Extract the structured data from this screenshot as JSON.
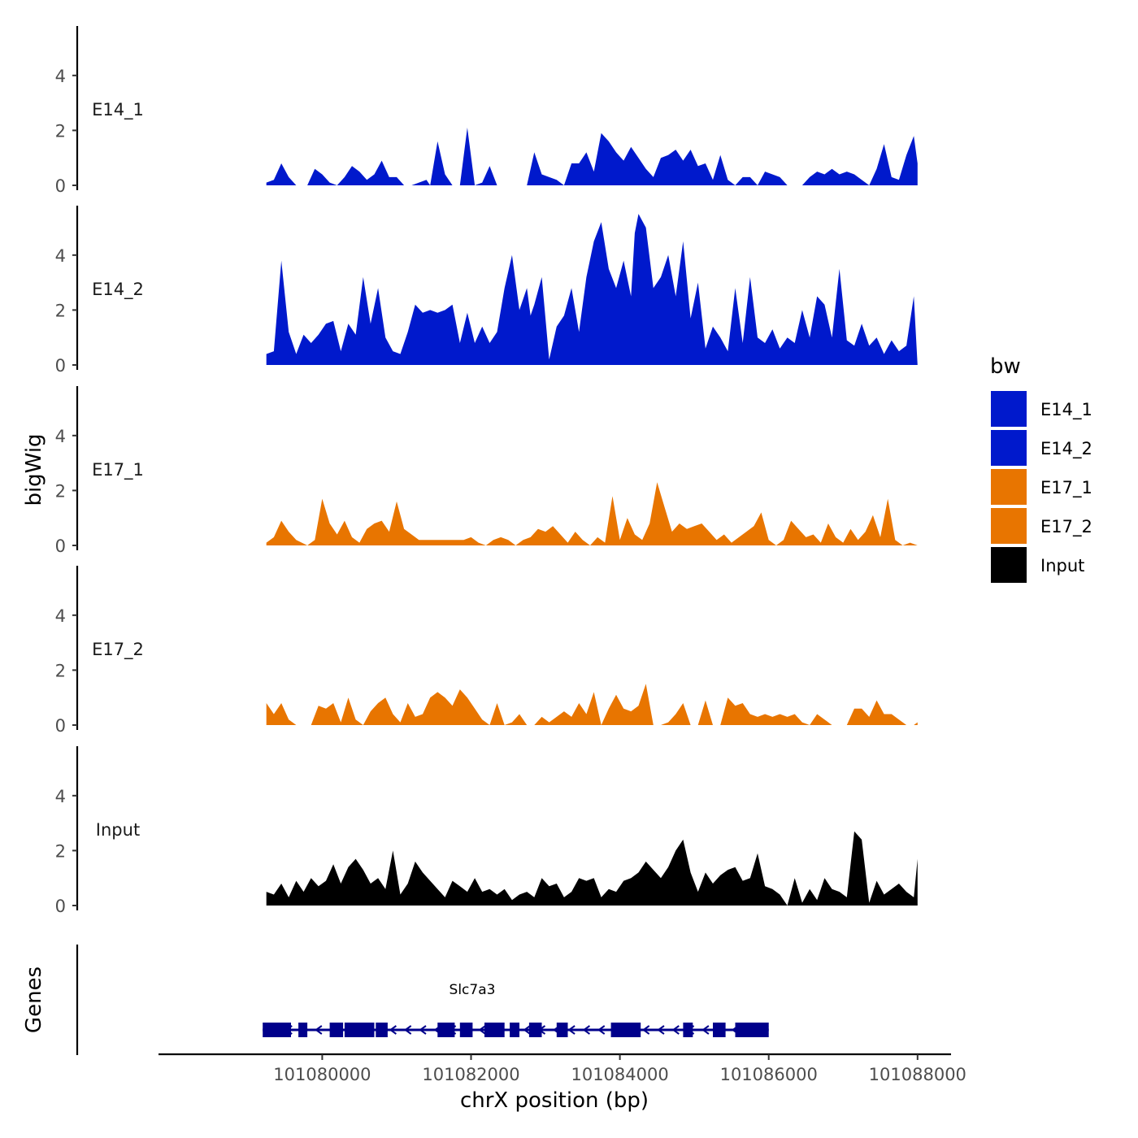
{
  "chart_data": {
    "type": "area",
    "ylabel": "bigWig",
    "xlabel": "chrX position (bp)",
    "ylim": [
      0,
      5.8
    ],
    "yticks": [
      0,
      2,
      4
    ],
    "xlim": [
      101077800,
      101088450
    ],
    "xticks": [
      101080000,
      101082000,
      101084000,
      101086000,
      101088000
    ],
    "xtick_labels": [
      "101080000",
      "101082000",
      "101084000",
      "101086000",
      "101088000"
    ],
    "legend": {
      "title": "bw",
      "position": "right",
      "entries": [
        {
          "label": "E14_1",
          "color": "#0019CC"
        },
        {
          "label": "E14_2",
          "color": "#0019CC"
        },
        {
          "label": "E17_1",
          "color": "#E87500"
        },
        {
          "label": "E17_2",
          "color": "#E87500"
        },
        {
          "label": "Input",
          "color": "#000000"
        }
      ]
    },
    "series": [
      {
        "name": "E14_1",
        "color": "#0019CC",
        "x": [
          101079250,
          101079350,
          101079450,
          101079550,
          101079650,
          101079800,
          101079900,
          101080000,
          101080100,
          101080200,
          101080300,
          101080400,
          101080500,
          101080600,
          101080700,
          101080800,
          101080900,
          101081000,
          101081100,
          101081200,
          101081300,
          101081400,
          101081450,
          101081550,
          101081650,
          101081750,
          101081850,
          101081950,
          101082050,
          101082150,
          101082250,
          101082350,
          101082450,
          101082550,
          101082650,
          101082750,
          101082850,
          101082950,
          101083050,
          101083150,
          101083250,
          101083350,
          101083450,
          101083550,
          101083650,
          101083750,
          101083850,
          101083950,
          101084050,
          101084150,
          101084250,
          101084350,
          101084450,
          101084550,
          101084650,
          101084750,
          101084850,
          101084950,
          101085050,
          101085150,
          101085250,
          101085350,
          101085450,
          101085550,
          101085650,
          101085750,
          101085850,
          101085950,
          101086050,
          101086150,
          101086250,
          101086350,
          101086450,
          101086550,
          101086650,
          101086750,
          101086850,
          101086950,
          101087050,
          101087150,
          101087250,
          101087350,
          101087450,
          101087550,
          101087650,
          101087750,
          101087850,
          101087950,
          101088000
        ],
        "values": [
          0.1,
          0.2,
          0.8,
          0.3,
          0.0,
          0.0,
          0.6,
          0.4,
          0.1,
          0.0,
          0.3,
          0.7,
          0.5,
          0.2,
          0.4,
          0.9,
          0.3,
          0.3,
          0.0,
          0.0,
          0.1,
          0.2,
          0.0,
          1.6,
          0.4,
          0.0,
          0.0,
          2.1,
          0.0,
          0.1,
          0.7,
          0.0,
          0.0,
          0.0,
          0.0,
          0.0,
          1.2,
          0.4,
          0.3,
          0.2,
          0.0,
          0.8,
          0.8,
          1.2,
          0.5,
          1.9,
          1.6,
          1.2,
          0.9,
          1.4,
          1.0,
          0.6,
          0.3,
          1.0,
          1.1,
          1.3,
          0.9,
          1.3,
          0.7,
          0.8,
          0.2,
          1.1,
          0.2,
          0.0,
          0.3,
          0.3,
          0.0,
          0.5,
          0.4,
          0.3,
          0.0,
          0.0,
          0.0,
          0.3,
          0.5,
          0.4,
          0.6,
          0.4,
          0.5,
          0.4,
          0.2,
          0.0,
          0.6,
          1.5,
          0.3,
          0.2,
          1.1,
          1.8,
          0.8
        ]
      },
      {
        "name": "E14_2",
        "color": "#0019CC",
        "x": [
          101079250,
          101079350,
          101079450,
          101079550,
          101079650,
          101079750,
          101079850,
          101079950,
          101080050,
          101080150,
          101080250,
          101080350,
          101080450,
          101080550,
          101080650,
          101080750,
          101080850,
          101080950,
          101081050,
          101081150,
          101081250,
          101081350,
          101081450,
          101081550,
          101081650,
          101081750,
          101081850,
          101081950,
          101082050,
          101082150,
          101082250,
          101082350,
          101082450,
          101082550,
          101082650,
          101082750,
          101082800,
          101082850,
          101082950,
          101083050,
          101083150,
          101083250,
          101083350,
          101083450,
          101083550,
          101083650,
          101083750,
          101083850,
          101083950,
          101084050,
          101084150,
          101084200,
          101084250,
          101084350,
          101084450,
          101084550,
          101084650,
          101084750,
          101084850,
          101084950,
          101085050,
          101085150,
          101085250,
          101085350,
          101085450,
          101085550,
          101085650,
          101085750,
          101085850,
          101085950,
          101086050,
          101086150,
          101086250,
          101086350,
          101086450,
          101086550,
          101086650,
          101086750,
          101086850,
          101086950,
          101087050,
          101087150,
          101087250,
          101087350,
          101087450,
          101087550,
          101087650,
          101087750,
          101087850,
          101087950,
          101088000
        ],
        "values": [
          0.4,
          0.5,
          3.8,
          1.2,
          0.4,
          1.1,
          0.8,
          1.1,
          1.5,
          1.6,
          0.5,
          1.5,
          1.1,
          3.2,
          1.5,
          2.8,
          1.0,
          0.5,
          0.4,
          1.2,
          2.2,
          1.9,
          2.0,
          1.9,
          2.0,
          2.2,
          0.8,
          1.9,
          0.8,
          1.4,
          0.8,
          1.2,
          2.8,
          4.0,
          2.0,
          2.8,
          1.8,
          2.2,
          3.2,
          0.2,
          1.4,
          1.8,
          2.8,
          1.2,
          3.2,
          4.5,
          5.2,
          3.5,
          2.8,
          3.8,
          2.5,
          4.8,
          5.5,
          5.0,
          2.8,
          3.2,
          4.0,
          2.5,
          4.5,
          1.7,
          3.0,
          0.6,
          1.4,
          1.0,
          0.5,
          2.8,
          0.8,
          3.2,
          1.0,
          0.8,
          1.3,
          0.6,
          1.0,
          0.8,
          2.0,
          1.0,
          2.5,
          2.2,
          1.0,
          3.5,
          0.9,
          0.7,
          1.5,
          0.7,
          1.0,
          0.4,
          0.9,
          0.5,
          0.7,
          2.5,
          0.0
        ]
      },
      {
        "name": "E17_1",
        "color": "#E87500",
        "x": [
          101079250,
          101079350,
          101079450,
          101079550,
          101079650,
          101079800,
          101079900,
          101080000,
          101080100,
          101080200,
          101080300,
          101080400,
          101080500,
          101080600,
          101080700,
          101080800,
          101080900,
          101081000,
          101081100,
          101081200,
          101081300,
          101081400,
          101081500,
          101081600,
          101081700,
          101081800,
          101081900,
          101082000,
          101082100,
          101082200,
          101082300,
          101082400,
          101082500,
          101082600,
          101082700,
          101082800,
          101082900,
          101083000,
          101083100,
          101083200,
          101083300,
          101083400,
          101083500,
          101083600,
          101083700,
          101083800,
          101083900,
          101084000,
          101084100,
          101084200,
          101084300,
          101084400,
          101084500,
          101084600,
          101084700,
          101084800,
          101084900,
          101085000,
          101085100,
          101085200,
          101085300,
          101085400,
          101085500,
          101085600,
          101085700,
          101085800,
          101085900,
          101086000,
          101086100,
          101086200,
          101086300,
          101086400,
          101086500,
          101086600,
          101086700,
          101086800,
          101086900,
          101087000,
          101087100,
          101087200,
          101087300,
          101087400,
          101087500,
          101087600,
          101087700,
          101087800,
          101087900,
          101088000
        ],
        "values": [
          0.1,
          0.3,
          0.9,
          0.5,
          0.2,
          0.0,
          0.2,
          1.7,
          0.8,
          0.4,
          0.9,
          0.3,
          0.1,
          0.6,
          0.8,
          0.9,
          0.5,
          1.6,
          0.6,
          0.4,
          0.2,
          0.2,
          0.2,
          0.2,
          0.2,
          0.2,
          0.2,
          0.3,
          0.1,
          0.0,
          0.2,
          0.3,
          0.2,
          0.0,
          0.2,
          0.3,
          0.6,
          0.5,
          0.7,
          0.4,
          0.1,
          0.5,
          0.2,
          0.0,
          0.3,
          0.1,
          1.8,
          0.2,
          1.0,
          0.4,
          0.2,
          0.8,
          2.3,
          1.4,
          0.5,
          0.8,
          0.6,
          0.7,
          0.8,
          0.5,
          0.2,
          0.4,
          0.1,
          0.3,
          0.5,
          0.7,
          1.2,
          0.2,
          0.0,
          0.2,
          0.9,
          0.6,
          0.3,
          0.4,
          0.1,
          0.8,
          0.3,
          0.1,
          0.6,
          0.2,
          0.5,
          1.1,
          0.3,
          1.7,
          0.2,
          0.0,
          0.1,
          0.0
        ]
      },
      {
        "name": "E17_2",
        "color": "#E87500",
        "x": [
          101079250,
          101079350,
          101079450,
          101079550,
          101079650,
          101079750,
          101079850,
          101079950,
          101080050,
          101080150,
          101080250,
          101080350,
          101080450,
          101080550,
          101080650,
          101080750,
          101080850,
          101080950,
          101081050,
          101081150,
          101081250,
          101081350,
          101081450,
          101081550,
          101081650,
          101081750,
          101081850,
          101081950,
          101082050,
          101082150,
          101082250,
          101082350,
          101082450,
          101082550,
          101082650,
          101082750,
          101082850,
          101082950,
          101083050,
          101083150,
          101083250,
          101083350,
          101083450,
          101083550,
          101083650,
          101083750,
          101083850,
          101083950,
          101084050,
          101084150,
          101084250,
          101084350,
          101084450,
          101084550,
          101084650,
          101084750,
          101084850,
          101084950,
          101085050,
          101085150,
          101085250,
          101085350,
          101085450,
          101085550,
          101085650,
          101085750,
          101085850,
          101085950,
          101086050,
          101086150,
          101086250,
          101086350,
          101086450,
          101086550,
          101086650,
          101086750,
          101086850,
          101086950,
          101087050,
          101087150,
          101087250,
          101087350,
          101087450,
          101087550,
          101087650,
          101087750,
          101087850,
          101087950,
          101088000
        ],
        "values": [
          0.8,
          0.4,
          0.8,
          0.2,
          0.0,
          0.0,
          0.0,
          0.7,
          0.6,
          0.8,
          0.1,
          1.0,
          0.2,
          0.0,
          0.5,
          0.8,
          1.0,
          0.4,
          0.1,
          0.8,
          0.3,
          0.4,
          1.0,
          1.2,
          1.0,
          0.7,
          1.3,
          1.0,
          0.6,
          0.2,
          0.0,
          0.8,
          0.0,
          0.1,
          0.4,
          0.0,
          0.0,
          0.3,
          0.1,
          0.3,
          0.5,
          0.3,
          0.8,
          0.4,
          1.2,
          0.0,
          0.6,
          1.1,
          0.6,
          0.5,
          0.7,
          1.5,
          0.0,
          0.0,
          0.1,
          0.4,
          0.8,
          0.0,
          0.0,
          0.9,
          0.0,
          0.0,
          1.0,
          0.7,
          0.8,
          0.4,
          0.3,
          0.4,
          0.3,
          0.4,
          0.3,
          0.4,
          0.1,
          0.0,
          0.4,
          0.2,
          0.0,
          0.0,
          0.0,
          0.6,
          0.6,
          0.3,
          0.9,
          0.4,
          0.4,
          0.2,
          0.0,
          0.0,
          0.1
        ]
      },
      {
        "name": "Input",
        "color": "#000000",
        "x": [
          101079250,
          101079350,
          101079450,
          101079550,
          101079650,
          101079750,
          101079850,
          101079950,
          101080050,
          101080150,
          101080250,
          101080350,
          101080450,
          101080550,
          101080650,
          101080750,
          101080850,
          101080950,
          101081050,
          101081150,
          101081250,
          101081350,
          101081450,
          101081550,
          101081650,
          101081750,
          101081850,
          101081950,
          101082050,
          101082150,
          101082250,
          101082350,
          101082450,
          101082550,
          101082650,
          101082750,
          101082850,
          101082950,
          101083050,
          101083150,
          101083250,
          101083350,
          101083450,
          101083550,
          101083650,
          101083750,
          101083850,
          101083950,
          101084050,
          101084150,
          101084250,
          101084350,
          101084450,
          101084550,
          101084650,
          101084750,
          101084850,
          101084950,
          101085050,
          101085150,
          101085250,
          101085350,
          101085450,
          101085550,
          101085650,
          101085750,
          101085850,
          101085950,
          101086050,
          101086150,
          101086250,
          101086350,
          101086450,
          101086550,
          101086650,
          101086750,
          101086850,
          101086950,
          101087050,
          101087150,
          101087250,
          101087350,
          101087450,
          101087550,
          101087650,
          101087750,
          101087850,
          101087950,
          101088000
        ],
        "values": [
          0.5,
          0.4,
          0.8,
          0.3,
          0.9,
          0.5,
          1.0,
          0.7,
          0.9,
          1.5,
          0.8,
          1.4,
          1.7,
          1.3,
          0.8,
          1.0,
          0.6,
          2.0,
          0.4,
          0.8,
          1.6,
          1.2,
          0.9,
          0.6,
          0.3,
          0.9,
          0.7,
          0.5,
          1.0,
          0.5,
          0.6,
          0.4,
          0.6,
          0.2,
          0.4,
          0.5,
          0.3,
          1.0,
          0.7,
          0.8,
          0.3,
          0.5,
          1.0,
          0.9,
          1.0,
          0.3,
          0.6,
          0.5,
          0.9,
          1.0,
          1.2,
          1.6,
          1.3,
          1.0,
          1.4,
          2.0,
          2.4,
          1.2,
          0.5,
          1.2,
          0.8,
          1.1,
          1.3,
          1.4,
          0.9,
          1.0,
          1.9,
          0.7,
          0.6,
          0.4,
          0.0,
          1.0,
          0.1,
          0.6,
          0.2,
          1.0,
          0.6,
          0.5,
          0.3,
          2.7,
          2.4,
          0.1,
          0.9,
          0.4,
          0.6,
          0.8,
          0.5,
          0.3,
          1.7
        ]
      }
    ],
    "genes_track": {
      "label": "Genes",
      "gene_name": "Slc7a3",
      "color": "#00008B",
      "start": 101079200,
      "end": 101086000,
      "strand": "-",
      "exons": [
        [
          101079200,
          101079580
        ],
        [
          101079680,
          101079800
        ],
        [
          101080100,
          101080280
        ],
        [
          101080300,
          101080700
        ],
        [
          101080720,
          101080880
        ],
        [
          101081550,
          101081780
        ],
        [
          101081850,
          101082020
        ],
        [
          101082180,
          101082450
        ],
        [
          101082520,
          101082650
        ],
        [
          101082780,
          101082950
        ],
        [
          101083150,
          101083300
        ],
        [
          101083880,
          101084280
        ],
        [
          101084850,
          101084980
        ],
        [
          101085250,
          101085420
        ],
        [
          101085550,
          101086000
        ]
      ]
    }
  }
}
